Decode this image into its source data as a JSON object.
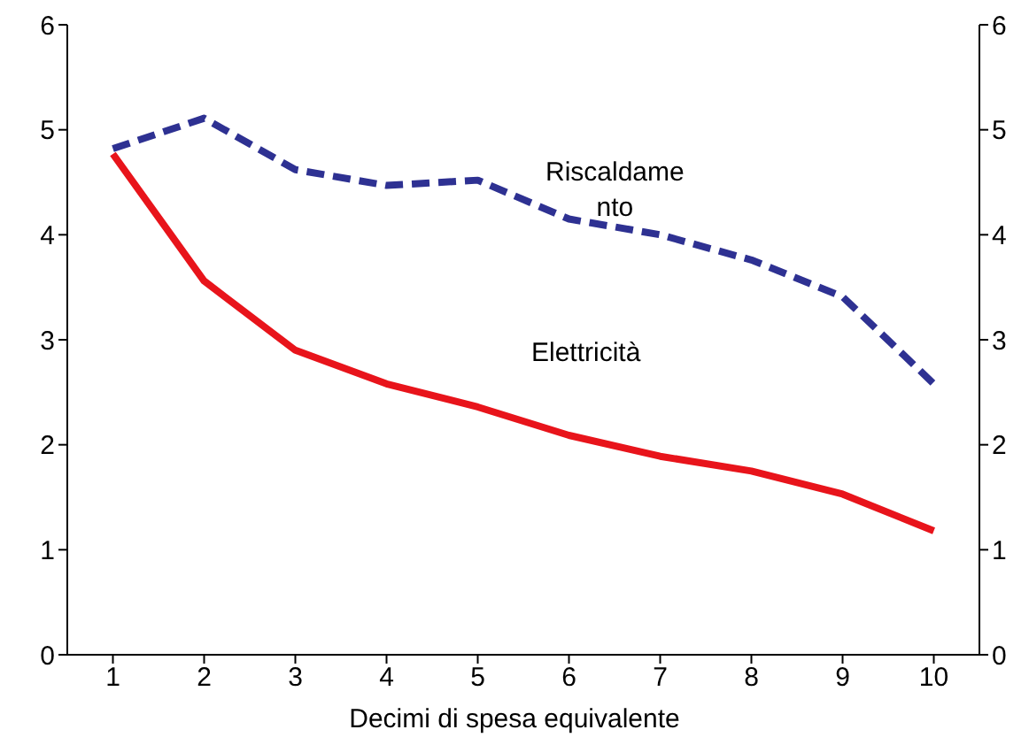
{
  "chart_data": {
    "type": "line",
    "xlabel": "Decimi di spesa equivalente",
    "x": [
      1,
      2,
      3,
      4,
      5,
      6,
      7,
      8,
      9,
      10
    ],
    "series": [
      {
        "name": "Riscaldame\nnto",
        "color": "#2e3192",
        "line_style": "dashed",
        "values": [
          4.82,
          5.11,
          4.62,
          4.47,
          4.52,
          4.15,
          4.0,
          3.76,
          3.41,
          2.58
        ]
      },
      {
        "name": "Elettricità",
        "color": "#e8141b",
        "line_style": "solid",
        "values": [
          4.77,
          3.56,
          2.9,
          2.58,
          2.36,
          2.09,
          1.89,
          1.75,
          1.53,
          1.18
        ]
      }
    ],
    "xlim": [
      0.5,
      10.5
    ],
    "xticks": [
      1,
      2,
      3,
      4,
      5,
      6,
      7,
      8,
      9,
      10
    ],
    "ylim": [
      0,
      6
    ],
    "yticks": [
      0,
      1,
      2,
      3,
      4,
      5,
      6
    ],
    "y2lim": [
      0,
      6
    ],
    "y2ticks": [
      0,
      1,
      2,
      3,
      4,
      5,
      6
    ],
    "marker": "none"
  }
}
